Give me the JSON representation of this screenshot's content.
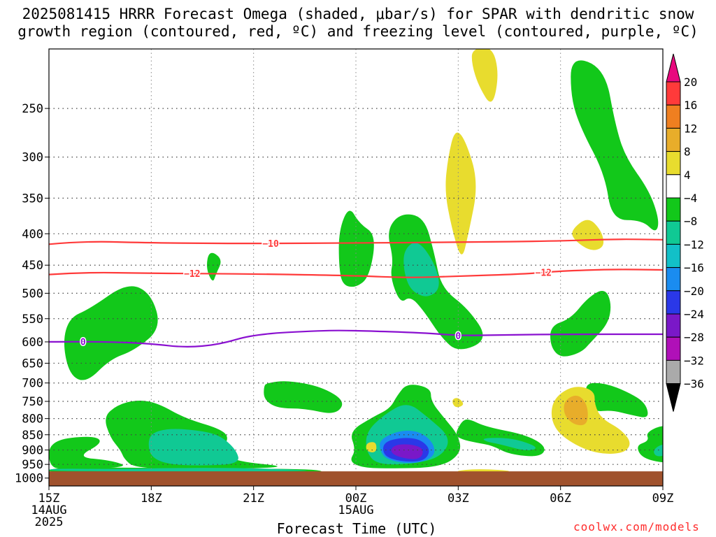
{
  "title": {
    "line1": "2025081415 HRRR Forecast Omega (shaded, μbar/s) for SPAR with dendritic snow",
    "line2": "growth region (contoured, red, ºC) and freezing level (contoured, purple, ºC)"
  },
  "footer": {
    "xlabel": "Forecast Time (UTC)",
    "credit": "coolwx.com/models"
  },
  "chart_data": {
    "type": "heatmap",
    "title": "2025081415 HRRR Forecast Omega (shaded, μbar/s) for SPAR with dendritic snow growth region (contoured, red, ºC) and freezing level (contoured, purple, ºC)",
    "xlabel": "Forecast Time (UTC)",
    "ylabel": "",
    "x_ticks": [
      {
        "label": "15Z",
        "sub": [
          "14AUG",
          "2025"
        ],
        "hour": 0
      },
      {
        "label": "18Z",
        "sub": [],
        "hour": 3
      },
      {
        "label": "21Z",
        "sub": [],
        "hour": 6
      },
      {
        "label": "00Z",
        "sub": [
          "15AUG"
        ],
        "hour": 9
      },
      {
        "label": "03Z",
        "sub": [],
        "hour": 12
      },
      {
        "label": "06Z",
        "sub": [],
        "hour": 15
      },
      {
        "label": "09Z",
        "sub": [],
        "hour": 18
      }
    ],
    "x_range_hours": [
      0,
      18
    ],
    "y_ticks": [
      250,
      300,
      350,
      400,
      450,
      500,
      550,
      600,
      650,
      700,
      750,
      800,
      850,
      900,
      950,
      1000
    ],
    "y_range_hpa": [
      200,
      1030
    ],
    "y_scale": "log-pressure",
    "grid": true,
    "colorbar": {
      "ticks": [
        20,
        16,
        12,
        8,
        4,
        -4,
        -8,
        -12,
        -16,
        -20,
        -24,
        -28,
        -32,
        -36
      ],
      "colors": [
        "#e8097e",
        "#ff3a3a",
        "#ef7f20",
        "#e8ad2a",
        "#e8dc2e",
        "#ffffff",
        "#12c81a",
        "#10c994",
        "#12c0c8",
        "#1a8cf0",
        "#2a38e8",
        "#7a18c8",
        "#b010b8",
        "#aaaaaa",
        "#000000"
      ]
    },
    "series": [
      {
        "name": "-10",
        "color": "#ff3a3a",
        "points": [
          [
            0,
            416
          ],
          [
            1,
            411
          ],
          [
            3,
            414
          ],
          [
            6,
            415
          ],
          [
            9,
            414
          ],
          [
            12,
            413
          ],
          [
            15,
            411
          ],
          [
            16.5,
            408
          ],
          [
            18,
            409
          ]
        ]
      },
      {
        "name": "-12",
        "color": "#ff3a3a",
        "points": [
          [
            0,
            466
          ],
          [
            1,
            462
          ],
          [
            3,
            464
          ],
          [
            6,
            465
          ],
          [
            9,
            468
          ],
          [
            10.5,
            472
          ],
          [
            12,
            469
          ],
          [
            14,
            465
          ],
          [
            15,
            460
          ],
          [
            16.5,
            457
          ],
          [
            18,
            458
          ]
        ]
      },
      {
        "name": "0",
        "color": "#8a10d0",
        "points": [
          [
            0,
            600
          ],
          [
            1.5,
            599
          ],
          [
            3,
            604
          ],
          [
            4,
            613
          ],
          [
            5,
            606
          ],
          [
            6,
            583
          ],
          [
            8,
            575
          ],
          [
            9,
            575
          ],
          [
            11,
            580
          ],
          [
            12,
            586
          ],
          [
            13,
            585
          ],
          [
            15,
            583
          ],
          [
            18,
            583
          ]
        ]
      }
    ],
    "regions": [
      {
        "class": "-4 to -8",
        "color": "#12c81a",
        "count": 14
      },
      {
        "class": "-8 to -12",
        "color": "#10c994",
        "count": 6
      },
      {
        "class": "-16 to -20",
        "color": "#1a8cf0",
        "count": 1
      },
      {
        "class": "-20 to -24",
        "color": "#2a38e8",
        "count": 1
      },
      {
        "class": "-24 to -28",
        "color": "#7a18c8",
        "count": 1
      },
      {
        "class": "4 to 8",
        "color": "#e8dc2e",
        "count": 7
      },
      {
        "class": "8 to 12",
        "color": "#e8ad2a",
        "count": 1
      }
    ],
    "ground_color": "#a0522d"
  }
}
